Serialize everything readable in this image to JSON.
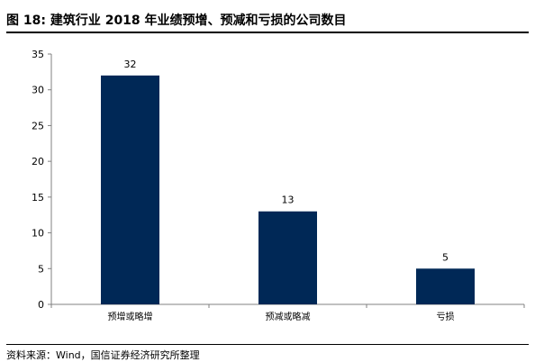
{
  "title": "图 18:  建筑行业 2018 年业绩预增、预减和亏损的公司数目",
  "source": "资料来源：Wind，国信证券经济研究所整理",
  "chart_data": {
    "type": "bar",
    "categories": [
      "预增或略增",
      "预减或略减",
      "亏损"
    ],
    "values": [
      32,
      13,
      5
    ],
    "ylim": [
      0,
      35
    ],
    "yticks": [
      0,
      5,
      10,
      15,
      20,
      25,
      30,
      35
    ],
    "bar_color": "#002856",
    "grid": false,
    "legend": "none"
  }
}
